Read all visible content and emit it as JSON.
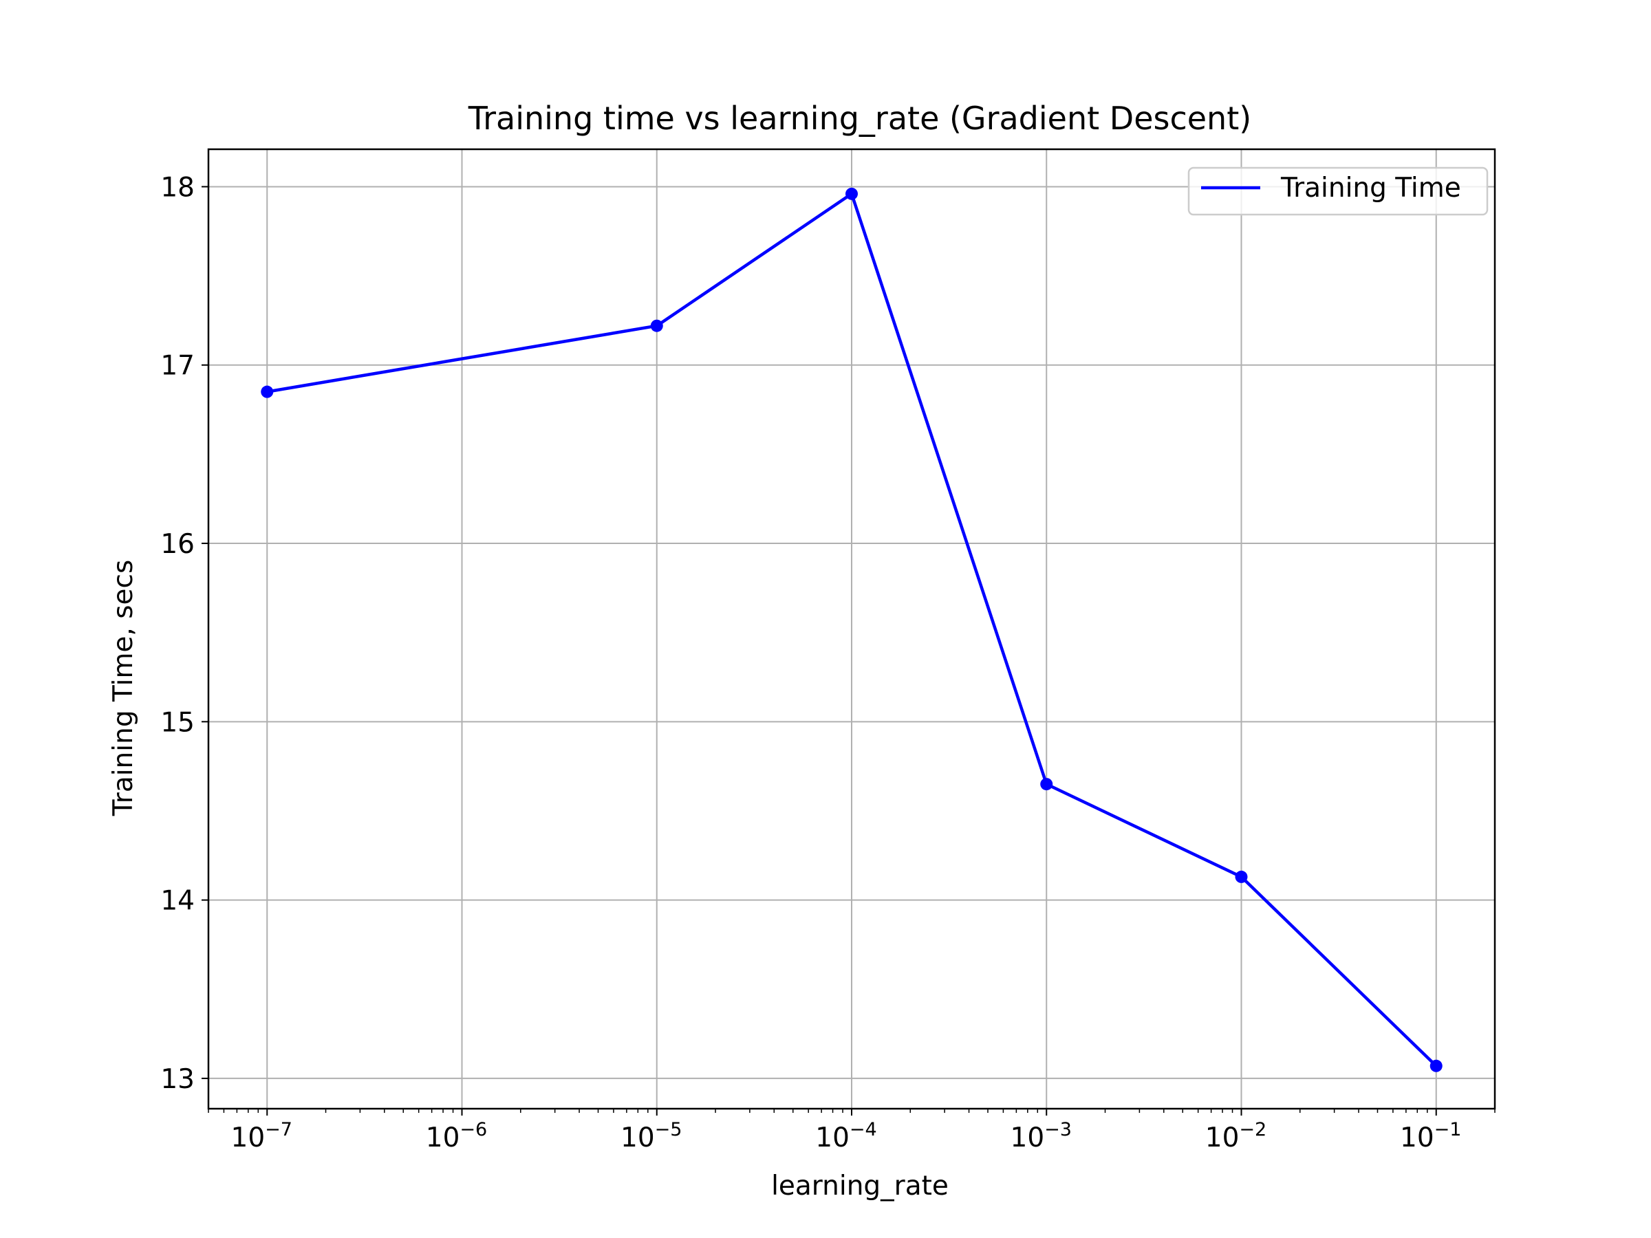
{
  "chart_data": {
    "type": "line",
    "title": "Training time vs learning_rate (Gradient Descent)",
    "xlabel": "learning_rate",
    "ylabel": "Training Time, secs",
    "xscale": "log",
    "xlim": [
      5e-08,
      0.2
    ],
    "ylim": [
      12.83,
      18.21
    ],
    "grid": true,
    "legend_position": "upper-right",
    "x_ticks": [
      {
        "value": 1e-07,
        "base": "10",
        "exp": "−7"
      },
      {
        "value": 1e-06,
        "base": "10",
        "exp": "−6"
      },
      {
        "value": 1e-05,
        "base": "10",
        "exp": "−5"
      },
      {
        "value": 0.0001,
        "base": "10",
        "exp": "−4"
      },
      {
        "value": 0.001,
        "base": "10",
        "exp": "−3"
      },
      {
        "value": 0.01,
        "base": "10",
        "exp": "−2"
      },
      {
        "value": 0.1,
        "base": "10",
        "exp": "−1"
      }
    ],
    "y_ticks": [
      {
        "value": 13,
        "label": "13"
      },
      {
        "value": 14,
        "label": "14"
      },
      {
        "value": 15,
        "label": "15"
      },
      {
        "value": 16,
        "label": "16"
      },
      {
        "value": 17,
        "label": "17"
      },
      {
        "value": 18,
        "label": "18"
      }
    ],
    "series": [
      {
        "name": "Training Time",
        "color": "#0000ff",
        "x": [
          1e-07,
          1e-05,
          0.0001,
          0.001,
          0.01,
          0.1
        ],
        "y": [
          16.85,
          17.22,
          17.96,
          14.65,
          14.13,
          13.07
        ]
      }
    ]
  }
}
